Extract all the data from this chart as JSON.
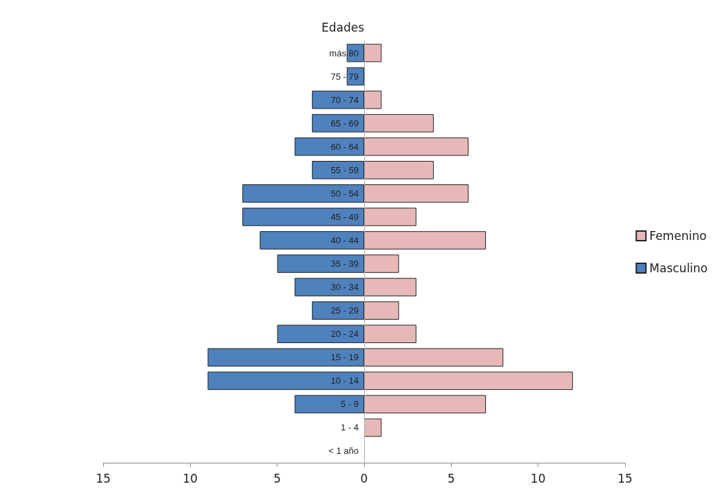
{
  "chart_data": {
    "type": "bar",
    "orientation": "horizontal",
    "stacked": true,
    "ylabel": "Edades",
    "categories": [
      "más 80",
      "75 - 79",
      "70 - 74",
      "65 - 69",
      "60 - 64",
      "55 - 59",
      "50 - 54",
      "45 - 49",
      "40 - 44",
      "35 - 39",
      "30 - 34",
      "25 - 29",
      "20 - 24",
      "15 - 19",
      "10 - 14",
      "5 - 9",
      "1 - 4",
      "< 1 año"
    ],
    "series": [
      {
        "name": "Femenino",
        "color": "#e6b9b8",
        "values": [
          1,
          0,
          1,
          4,
          6,
          4,
          6,
          3,
          7,
          2,
          3,
          2,
          3,
          8,
          12,
          7,
          1,
          0
        ]
      },
      {
        "name": "Masculino",
        "color": "#4f81bd",
        "values": [
          -1,
          -1,
          -3,
          -3,
          -4,
          -3,
          -7,
          -7,
          -6,
          -5,
          -4,
          -3,
          -5,
          -9,
          -9,
          -4,
          0,
          0
        ]
      }
    ],
    "xlim": [
      -15,
      15
    ],
    "xticks": [
      {
        "value": -15,
        "label": "15"
      },
      {
        "value": -10,
        "label": "10"
      },
      {
        "value": -5,
        "label": "5"
      },
      0,
      5,
      10,
      15
    ],
    "grid": false,
    "legend": "right"
  }
}
